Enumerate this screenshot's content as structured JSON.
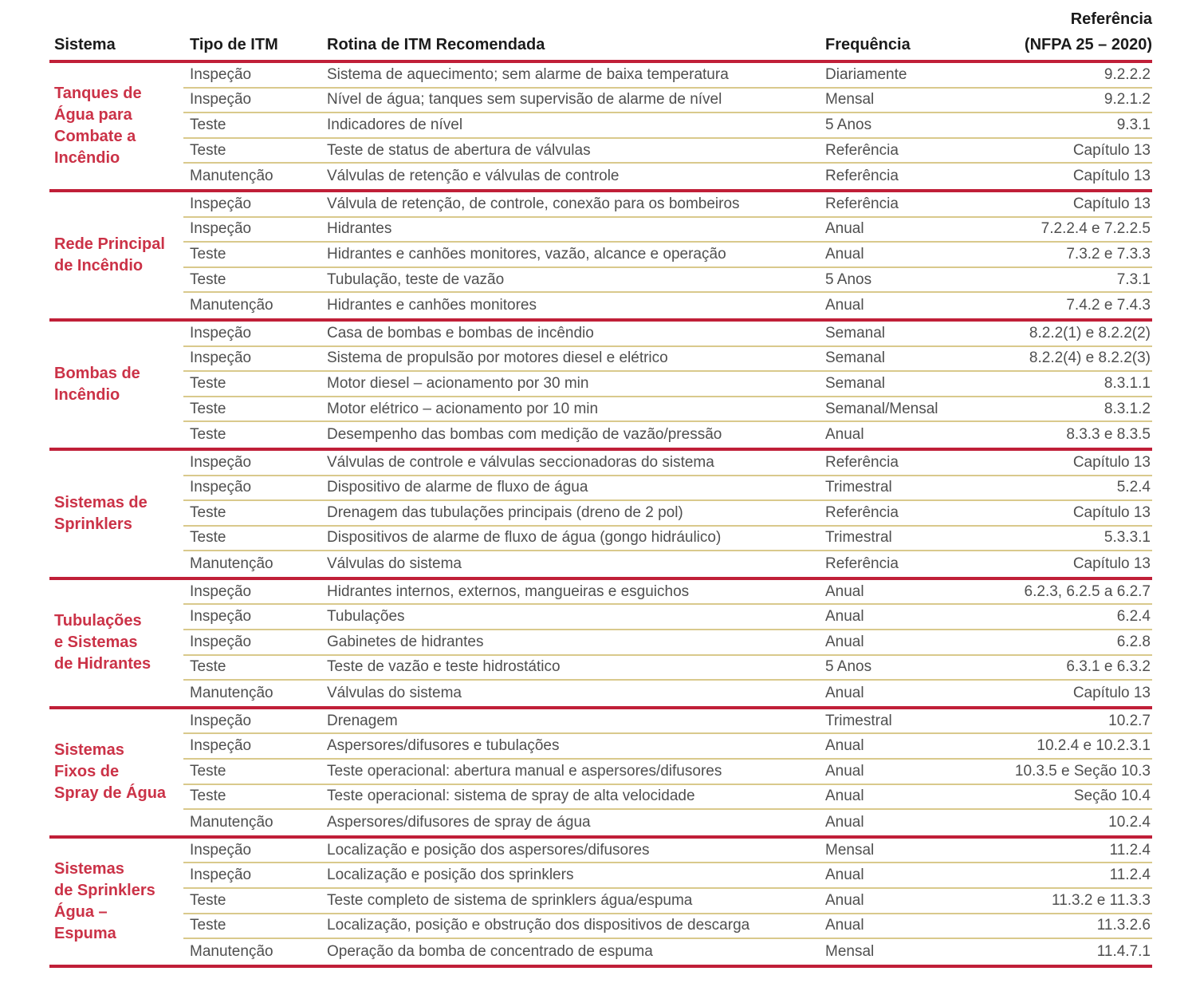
{
  "colors": {
    "group_divider_red": "#c01f38",
    "system_label_red": "#cb3247",
    "row_divider_tan": "#d9c98c",
    "header_text": "#1b1b1b",
    "body_text": "#4f4f4f"
  },
  "header": {
    "sistema": "Sistema",
    "tipo": "Tipo de ITM",
    "rotina": "Rotina de ITM Recomendada",
    "frequencia": "Frequência",
    "referencia_line1": "Referência",
    "referencia_line2": "(NFPA 25 – 2020)"
  },
  "groups": [
    {
      "sistema": "Tanques de Água para Combate a Incêndio",
      "sistema_lines": [
        "Tanques de",
        "Água para",
        "Combate a",
        "Incêndio"
      ],
      "rows": [
        {
          "tipo": "Inspeção",
          "rotina": "Sistema de aquecimento; sem alarme de baixa temperatura",
          "frequencia": "Diariamente",
          "referencia": "9.2.2.2"
        },
        {
          "tipo": "Inspeção",
          "rotina": "Nível de água; tanques sem supervisão de alarme de nível",
          "frequencia": "Mensal",
          "referencia": "9.2.1.2"
        },
        {
          "tipo": "Teste",
          "rotina": "Indicadores de nível",
          "frequencia": "5 Anos",
          "referencia": "9.3.1"
        },
        {
          "tipo": "Teste",
          "rotina": "Teste de status de abertura de válvulas",
          "frequencia": "Referência",
          "referencia": "Capítulo 13"
        },
        {
          "tipo": "Manutenção",
          "rotina": "Válvulas de retenção e válvulas de controle",
          "frequencia": "Referência",
          "referencia": "Capítulo 13"
        }
      ]
    },
    {
      "sistema": "Rede Principal de Incêndio",
      "sistema_lines": [
        "Rede Principal",
        "de Incêndio"
      ],
      "rows": [
        {
          "tipo": "Inspeção",
          "rotina": "Válvula de retenção, de controle, conexão para os bombeiros",
          "frequencia": "Referência",
          "referencia": "Capítulo 13"
        },
        {
          "tipo": "Inspeção",
          "rotina": "Hidrantes",
          "frequencia": "Anual",
          "referencia": "7.2.2.4 e 7.2.2.5"
        },
        {
          "tipo": "Teste",
          "rotina": "Hidrantes e canhões monitores, vazão, alcance e operação",
          "frequencia": "Anual",
          "referencia": "7.3.2 e 7.3.3"
        },
        {
          "tipo": "Teste",
          "rotina": "Tubulação, teste de vazão",
          "frequencia": "5 Anos",
          "referencia": "7.3.1"
        },
        {
          "tipo": "Manutenção",
          "rotina": "Hidrantes e canhões monitores",
          "frequencia": "Anual",
          "referencia": "7.4.2 e 7.4.3"
        }
      ]
    },
    {
      "sistema": "Bombas de Incêndio",
      "sistema_lines": [
        "Bombas de",
        "Incêndio"
      ],
      "rows": [
        {
          "tipo": "Inspeção",
          "rotina": "Casa de bombas e bombas de incêndio",
          "frequencia": "Semanal",
          "referencia": "8.2.2(1) e 8.2.2(2)"
        },
        {
          "tipo": "Inspeção",
          "rotina": "Sistema de propulsão por motores diesel e elétrico",
          "frequencia": "Semanal",
          "referencia": "8.2.2(4) e 8.2.2(3)"
        },
        {
          "tipo": "Teste",
          "rotina": "Motor diesel – acionamento por 30 min",
          "frequencia": "Semanal",
          "referencia": "8.3.1.1"
        },
        {
          "tipo": "Teste",
          "rotina": "Motor elétrico – acionamento por 10 min",
          "frequencia": "Semanal/Mensal",
          "referencia": "8.3.1.2"
        },
        {
          "tipo": "Teste",
          "rotina": "Desempenho das bombas com medição de vazão/pressão",
          "frequencia": "Anual",
          "referencia": "8.3.3 e 8.3.5"
        }
      ]
    },
    {
      "sistema": "Sistemas de Sprinklers",
      "sistema_lines": [
        "Sistemas de",
        "Sprinklers"
      ],
      "rows": [
        {
          "tipo": "Inspeção",
          "rotina": "Válvulas de controle e válvulas seccionadoras do sistema",
          "frequencia": "Referência",
          "referencia": "Capítulo 13"
        },
        {
          "tipo": "Inspeção",
          "rotina": "Dispositivo de alarme de fluxo de água",
          "frequencia": "Trimestral",
          "referencia": "5.2.4"
        },
        {
          "tipo": "Teste",
          "rotina": "Drenagem das tubulações principais (dreno de 2 pol)",
          "frequencia": "Referência",
          "referencia": "Capítulo 13"
        },
        {
          "tipo": "Teste",
          "rotina": "Dispositivos de alarme de fluxo de água (gongo hidráulico)",
          "frequencia": "Trimestral",
          "referencia": "5.3.3.1"
        },
        {
          "tipo": "Manutenção",
          "rotina": "Válvulas do sistema",
          "frequencia": "Referência",
          "referencia": "Capítulo 13"
        }
      ]
    },
    {
      "sistema": "Tubulações e Sistemas de Hidrantes",
      "sistema_lines": [
        "Tubulações",
        "e Sistemas",
        "de Hidrantes"
      ],
      "rows": [
        {
          "tipo": "Inspeção",
          "rotina": "Hidrantes internos, externos, mangueiras e esguichos",
          "frequencia": "Anual",
          "referencia": "6.2.3, 6.2.5 a 6.2.7"
        },
        {
          "tipo": "Inspeção",
          "rotina": "Tubulações",
          "frequencia": "Anual",
          "referencia": "6.2.4"
        },
        {
          "tipo": "Inspeção",
          "rotina": "Gabinetes de hidrantes",
          "frequencia": "Anual",
          "referencia": "6.2.8"
        },
        {
          "tipo": "Teste",
          "rotina": "Teste de vazão e teste hidrostático",
          "frequencia": "5 Anos",
          "referencia": "6.3.1 e 6.3.2"
        },
        {
          "tipo": "Manutenção",
          "rotina": "Válvulas do sistema",
          "frequencia": "Anual",
          "referencia": "Capítulo 13"
        }
      ]
    },
    {
      "sistema": "Sistemas Fixos de Spray de Água",
      "sistema_lines": [
        "Sistemas",
        "Fixos de",
        "Spray de Água"
      ],
      "rows": [
        {
          "tipo": "Inspeção",
          "rotina": "Drenagem",
          "frequencia": "Trimestral",
          "referencia": "10.2.7"
        },
        {
          "tipo": "Inspeção",
          "rotina": "Aspersores/difusores e tubulações",
          "frequencia": "Anual",
          "referencia": "10.2.4 e 10.2.3.1"
        },
        {
          "tipo": "Teste",
          "rotina": "Teste operacional: abertura manual e aspersores/difusores",
          "frequencia": "Anual",
          "referencia": "10.3.5 e Seção 10.3"
        },
        {
          "tipo": "Teste",
          "rotina": "Teste operacional: sistema de spray de alta velocidade",
          "frequencia": "Anual",
          "referencia": "Seção 10.4"
        },
        {
          "tipo": "Manutenção",
          "rotina": "Aspersores/difusores de spray de água",
          "frequencia": "Anual",
          "referencia": "10.2.4"
        }
      ]
    },
    {
      "sistema": "Sistemas de Sprinklers Água – Espuma",
      "sistema_lines": [
        "Sistemas",
        "de Sprinklers",
        "Água –",
        "Espuma"
      ],
      "rows": [
        {
          "tipo": "Inspeção",
          "rotina": "Localização e posição dos aspersores/difusores",
          "frequencia": "Mensal",
          "referencia": "11.2.4"
        },
        {
          "tipo": "Inspeção",
          "rotina": "Localização e posição dos sprinklers",
          "frequencia": "Anual",
          "referencia": "11.2.4"
        },
        {
          "tipo": "Teste",
          "rotina": "Teste completo de sistema de sprinklers água/espuma",
          "frequencia": "Anual",
          "referencia": "11.3.2 e 11.3.3"
        },
        {
          "tipo": "Teste",
          "rotina": "Localização, posição e obstrução dos dispositivos de descarga",
          "frequencia": "Anual",
          "referencia": "11.3.2.6"
        },
        {
          "tipo": "Manutenção",
          "rotina": "Operação da bomba de concentrado de espuma",
          "frequencia": "Mensal",
          "referencia": "11.4.7.1"
        }
      ]
    }
  ]
}
